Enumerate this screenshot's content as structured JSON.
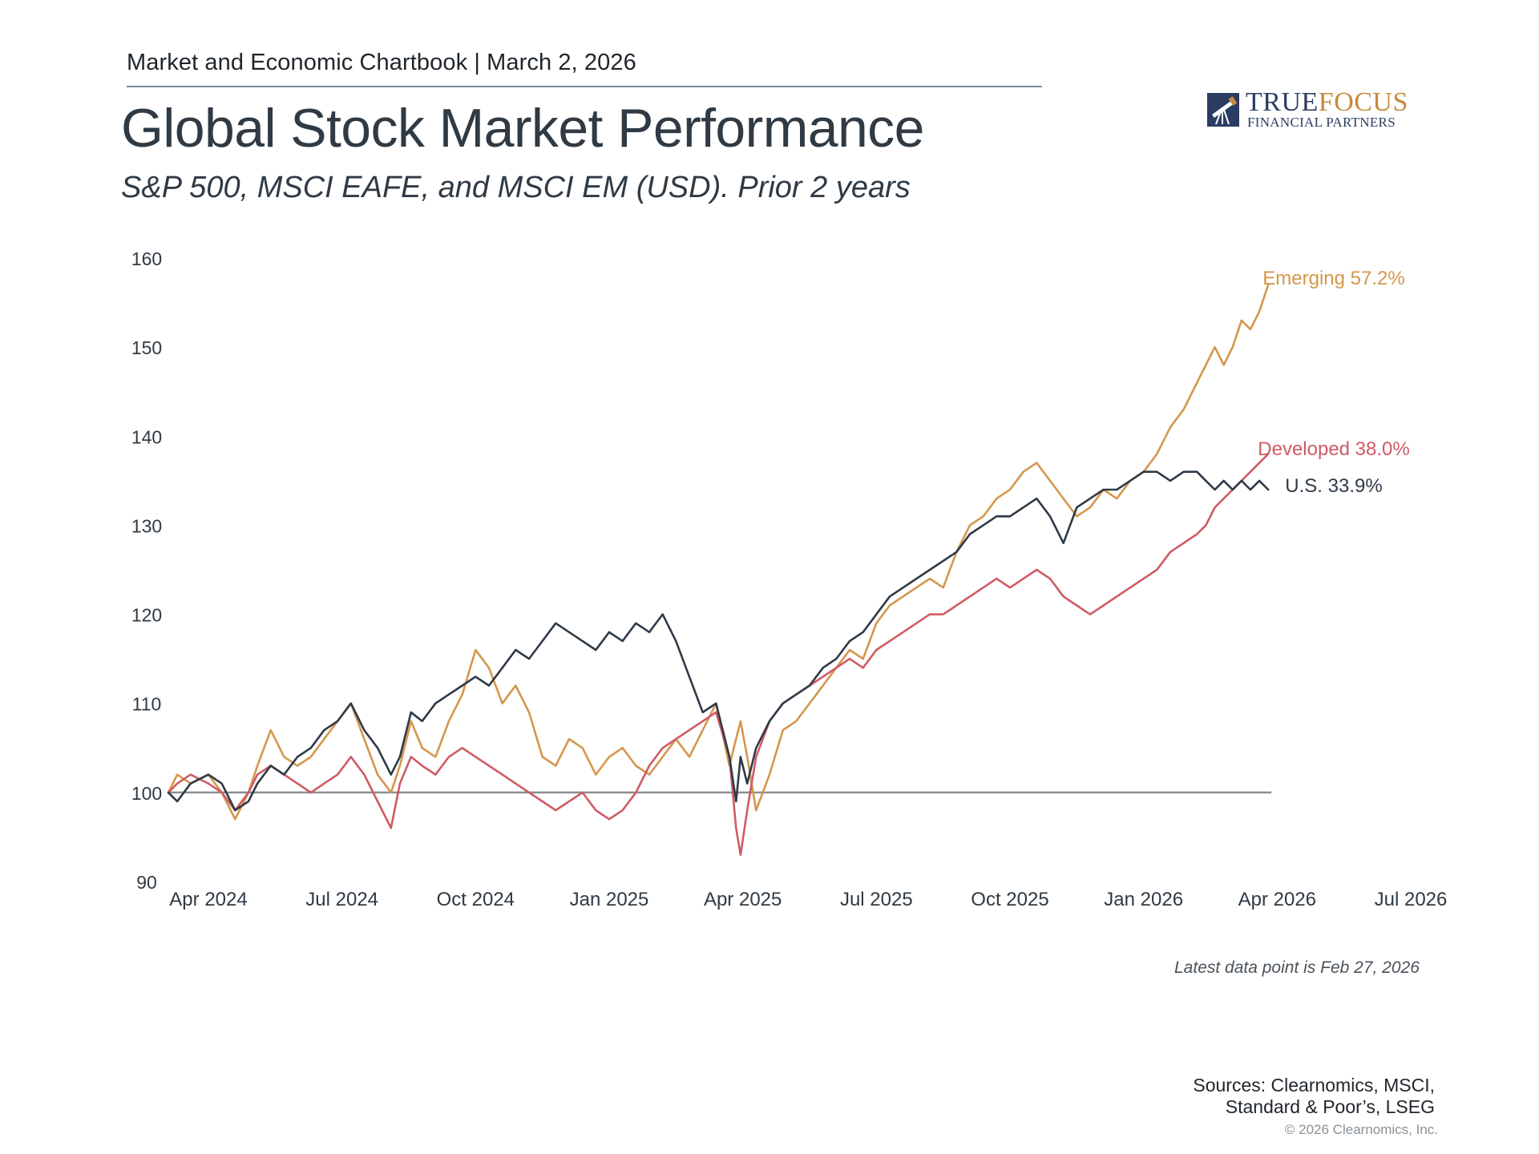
{
  "header": {
    "chartbook": "Market and Economic Chartbook | March 2, 2026",
    "title": "Global Stock Market Performance",
    "subtitle": "S&P 500, MSCI EAFE, and MSCI EM (USD). Prior 2 years"
  },
  "logo": {
    "word_part1": "TRUE",
    "word_part2": "FOCUS",
    "subtitle": "FINANCIAL PARTNERS",
    "colors": {
      "navy": "#2b3c63",
      "gold": "#c58a3d"
    }
  },
  "footnote": "Latest data point is Feb 27, 2026",
  "sources": {
    "line1": "Sources: Clearnomics, MSCI,",
    "line2": "Standard & Poor’s, LSEG"
  },
  "copyright": "© 2026 Clearnomics, Inc.",
  "chart_data": {
    "type": "line",
    "title": "Global Stock Market Performance",
    "xlabel": "",
    "ylabel": "",
    "ylim": [
      90,
      160
    ],
    "yticks": [
      90,
      100,
      110,
      120,
      130,
      140,
      150,
      160
    ],
    "xlim": [
      0,
      28
    ],
    "xticks": [
      {
        "x": 0,
        "label": "Apr 2024"
      },
      {
        "x": 3,
        "label": "Jul 2024"
      },
      {
        "x": 6,
        "label": "Oct 2024"
      },
      {
        "x": 9,
        "label": "Jan 2025"
      },
      {
        "x": 12,
        "label": "Apr 2025"
      },
      {
        "x": 15,
        "label": "Jul 2025"
      },
      {
        "x": 18,
        "label": "Oct 2025"
      },
      {
        "x": 21,
        "label": "Jan 2026"
      },
      {
        "x": 24,
        "label": "Apr 2026"
      },
      {
        "x": 27,
        "label": "Jul 2026"
      }
    ],
    "baseline": 100,
    "grid": false,
    "x_units": "months since Apr 1, 2024",
    "series": [
      {
        "name": "Emerging",
        "label": "Emerging 57.2%",
        "color": "#d4974c",
        "x": [
          -0.9,
          -0.7,
          -0.4,
          0,
          0.3,
          0.6,
          0.9,
          1.1,
          1.4,
          1.7,
          2.0,
          2.3,
          2.6,
          2.9,
          3.2,
          3.5,
          3.8,
          4.1,
          4.3,
          4.55,
          4.8,
          5.1,
          5.4,
          5.7,
          6.0,
          6.3,
          6.6,
          6.9,
          7.2,
          7.5,
          7.8,
          8.1,
          8.4,
          8.7,
          9.0,
          9.3,
          9.6,
          9.9,
          10.2,
          10.5,
          10.8,
          11.1,
          11.4,
          11.7,
          11.85,
          11.95,
          12.1,
          12.3,
          12.6,
          12.9,
          13.2,
          13.5,
          13.8,
          14.1,
          14.4,
          14.7,
          15.0,
          15.3,
          15.6,
          15.9,
          16.2,
          16.5,
          16.8,
          17.1,
          17.4,
          17.7,
          18.0,
          18.3,
          18.6,
          18.9,
          19.2,
          19.5,
          19.8,
          20.1,
          20.4,
          20.7,
          21.0,
          21.3,
          21.6,
          21.9,
          22.2,
          22.4,
          22.6,
          22.8,
          23.0,
          23.2,
          23.4,
          23.6,
          23.8
        ],
        "values": [
          100,
          102,
          101,
          102,
          100,
          97,
          100,
          103,
          107,
          104,
          103,
          104,
          106,
          108,
          110,
          106,
          102,
          100,
          103,
          108,
          105,
          104,
          108,
          111,
          116,
          114,
          110,
          112,
          109,
          104,
          103,
          106,
          105,
          102,
          104,
          105,
          103,
          102,
          104,
          106,
          104,
          107,
          110,
          103,
          106,
          108,
          104,
          98,
          102,
          107,
          108,
          110,
          112,
          114,
          116,
          115,
          119,
          121,
          122,
          123,
          124,
          123,
          127,
          130,
          131,
          133,
          134,
          136,
          137,
          135,
          133,
          131,
          132,
          134,
          133,
          135,
          136,
          138,
          141,
          143,
          146,
          148,
          150,
          148,
          150,
          153,
          152,
          154,
          157
        ]
      },
      {
        "name": "Developed",
        "label": "Developed 38.0%",
        "color": "#cf5b64",
        "x": [
          -0.9,
          -0.7,
          -0.4,
          0,
          0.3,
          0.6,
          0.9,
          1.1,
          1.4,
          1.7,
          2.0,
          2.3,
          2.6,
          2.9,
          3.2,
          3.5,
          3.8,
          4.1,
          4.3,
          4.55,
          4.8,
          5.1,
          5.4,
          5.7,
          6.0,
          6.3,
          6.6,
          6.9,
          7.2,
          7.5,
          7.8,
          8.1,
          8.4,
          8.7,
          9.0,
          9.3,
          9.6,
          9.9,
          10.2,
          10.5,
          10.8,
          11.1,
          11.4,
          11.7,
          11.85,
          11.95,
          12.1,
          12.3,
          12.6,
          12.9,
          13.2,
          13.5,
          13.8,
          14.1,
          14.4,
          14.7,
          15.0,
          15.3,
          15.6,
          15.9,
          16.2,
          16.5,
          16.8,
          17.1,
          17.4,
          17.7,
          18.0,
          18.3,
          18.6,
          18.9,
          19.2,
          19.5,
          19.8,
          20.1,
          20.4,
          20.7,
          21.0,
          21.3,
          21.6,
          21.9,
          22.2,
          22.4,
          22.6,
          22.8,
          23.0,
          23.2,
          23.4,
          23.6,
          23.8
        ],
        "values": [
          100,
          101,
          102,
          101,
          100,
          98,
          100,
          102,
          103,
          102,
          101,
          100,
          101,
          102,
          104,
          102,
          99,
          96,
          101,
          104,
          103,
          102,
          104,
          105,
          104,
          103,
          102,
          101,
          100,
          99,
          98,
          99,
          100,
          98,
          97,
          98,
          100,
          103,
          105,
          106,
          107,
          108,
          109,
          104,
          96,
          93,
          98,
          104,
          108,
          110,
          111,
          112,
          113,
          114,
          115,
          114,
          116,
          117,
          118,
          119,
          120,
          120,
          121,
          122,
          123,
          124,
          123,
          124,
          125,
          124,
          122,
          121,
          120,
          121,
          122,
          123,
          124,
          125,
          127,
          128,
          129,
          130,
          132,
          133,
          134,
          135,
          136,
          137,
          138
        ]
      },
      {
        "name": "U.S.",
        "label": "U.S. 33.9%",
        "color": "#2e3a47",
        "x": [
          -0.9,
          -0.7,
          -0.4,
          0,
          0.3,
          0.6,
          0.9,
          1.1,
          1.4,
          1.7,
          2.0,
          2.3,
          2.6,
          2.9,
          3.2,
          3.5,
          3.8,
          4.1,
          4.3,
          4.55,
          4.8,
          5.1,
          5.4,
          5.7,
          6.0,
          6.3,
          6.6,
          6.9,
          7.2,
          7.5,
          7.8,
          8.1,
          8.4,
          8.7,
          9.0,
          9.3,
          9.6,
          9.9,
          10.2,
          10.5,
          10.8,
          11.1,
          11.4,
          11.7,
          11.85,
          11.95,
          12.1,
          12.3,
          12.6,
          12.9,
          13.2,
          13.5,
          13.8,
          14.1,
          14.4,
          14.7,
          15.0,
          15.3,
          15.6,
          15.9,
          16.2,
          16.5,
          16.8,
          17.1,
          17.4,
          17.7,
          18.0,
          18.3,
          18.6,
          18.9,
          19.2,
          19.5,
          19.8,
          20.1,
          20.4,
          20.7,
          21.0,
          21.3,
          21.6,
          21.9,
          22.2,
          22.4,
          22.6,
          22.8,
          23.0,
          23.2,
          23.4,
          23.6,
          23.8
        ],
        "values": [
          100,
          99,
          101,
          102,
          101,
          98,
          99,
          101,
          103,
          102,
          104,
          105,
          107,
          108,
          110,
          107,
          105,
          102,
          104,
          109,
          108,
          110,
          111,
          112,
          113,
          112,
          114,
          116,
          115,
          117,
          119,
          118,
          117,
          116,
          118,
          117,
          119,
          118,
          120,
          117,
          113,
          109,
          110,
          104,
          99,
          104,
          101,
          105,
          108,
          110,
          111,
          112,
          114,
          115,
          117,
          118,
          120,
          122,
          123,
          124,
          125,
          126,
          127,
          129,
          130,
          131,
          131,
          132,
          133,
          131,
          128,
          132,
          133,
          134,
          134,
          135,
          136,
          136,
          135,
          136,
          136,
          135,
          134,
          135,
          134,
          135,
          134,
          135,
          134
        ]
      }
    ]
  }
}
